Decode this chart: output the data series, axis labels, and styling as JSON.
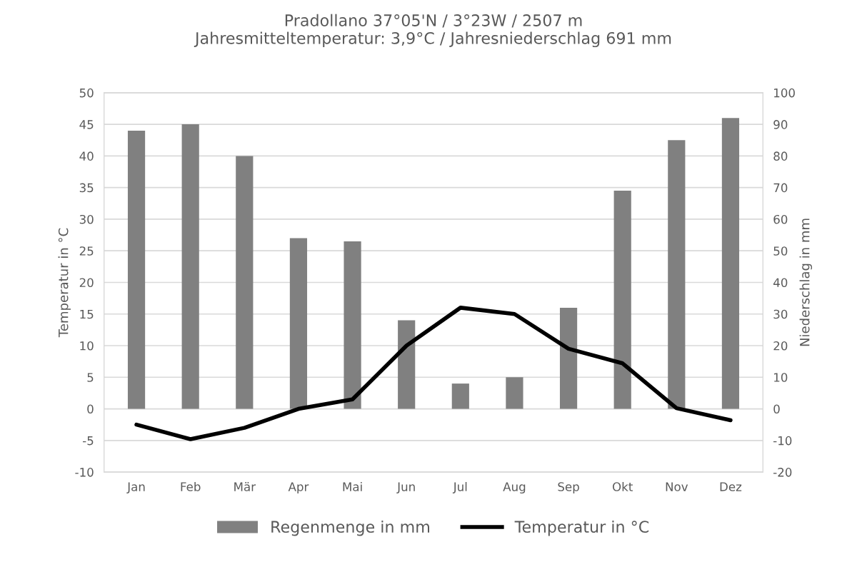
{
  "chart_data": {
    "type": "bar",
    "title": "Pradollano 37°05'N / 3°23W / 2507 m\nJahresmitteltemperatur: 3,9°C / Jahresniederschlag 691 mm",
    "ylabel": "Temperatur in °C",
    "y2label": "Niederschlag in mm",
    "categories": [
      "Jan",
      "Feb",
      "Mär",
      "Apr",
      "Mai",
      "Jun",
      "Jul",
      "Aug",
      "Sep",
      "Okt",
      "Nov",
      "Dez"
    ],
    "series": [
      {
        "name": "Regenmenge in mm",
        "axis": "y2",
        "color": "#808080",
        "values": [
          88,
          90,
          80,
          54,
          53,
          28,
          8,
          10,
          32,
          69,
          85,
          92
        ]
      },
      {
        "name": "Temperatur in °C",
        "type": "line",
        "axis": "y",
        "color": "#000000",
        "values": [
          -2.5,
          -4.8,
          -3,
          0,
          1.5,
          10,
          16,
          15,
          9.5,
          7.2,
          0.1,
          -1.8
        ]
      }
    ],
    "ylim": [
      -10,
      50
    ],
    "yticks": [
      -10,
      -5,
      0,
      5,
      10,
      15,
      20,
      25,
      30,
      35,
      40,
      45,
      50
    ],
    "y2lim": [
      -20,
      100
    ],
    "y2ticks": [
      -20,
      -10,
      0,
      10,
      20,
      30,
      40,
      50,
      60,
      70,
      80,
      90,
      100
    ],
    "grid": "y",
    "legend": "bottom",
    "marker": "none",
    "line_style": "solid"
  }
}
